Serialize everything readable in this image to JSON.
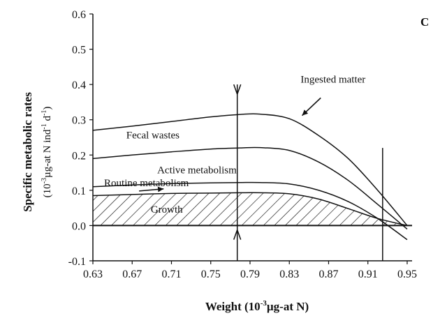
{
  "chart_data": {
    "type": "line",
    "panel_label": "C",
    "xlabel": {
      "main": "Weight (10",
      "sup": "-3",
      "unit": "µg-at N)"
    },
    "ylabel": {
      "line1": "Specific metabolic rates",
      "line2_a": "(10",
      "line2_sup1": "-3",
      "line2_b": "µg-at N ind",
      "line2_sup2": "-1",
      "line2_c": " d",
      "line2_sup3": "-1",
      "line2_d": ")"
    },
    "xlim": [
      0.63,
      0.955
    ],
    "ylim": [
      -0.1,
      0.6
    ],
    "x_ticks": [
      "0.63",
      "0.67",
      "0.71",
      "0.75",
      "0.79",
      "0.83",
      "0.87",
      "0.91",
      "0.95"
    ],
    "y_ticks": [
      "-0.1",
      "0.0",
      "0.1",
      "0.2",
      "0.3",
      "0.4",
      "0.5",
      "0.6"
    ],
    "grid": false,
    "series": [
      {
        "name": "Ingested matter",
        "x": [
          0.63,
          0.67,
          0.71,
          0.75,
          0.78,
          0.8,
          0.83,
          0.86,
          0.89,
          0.92,
          0.95
        ],
        "y": [
          0.27,
          0.282,
          0.295,
          0.308,
          0.315,
          0.316,
          0.303,
          0.255,
          0.19,
          0.1,
          0.0
        ]
      },
      {
        "name": "Fecal wastes",
        "x": [
          0.63,
          0.67,
          0.71,
          0.75,
          0.78,
          0.8,
          0.83,
          0.86,
          0.89,
          0.92,
          0.95
        ],
        "y": [
          0.19,
          0.2,
          0.209,
          0.217,
          0.22,
          0.221,
          0.213,
          0.18,
          0.128,
          0.06,
          -0.01
        ]
      },
      {
        "name": "Active metabolism",
        "x": [
          0.63,
          0.67,
          0.71,
          0.75,
          0.78,
          0.8,
          0.83,
          0.86,
          0.89,
          0.92,
          0.95
        ],
        "y": [
          0.11,
          0.115,
          0.119,
          0.121,
          0.122,
          0.122,
          0.118,
          0.1,
          0.068,
          0.02,
          -0.04
        ]
      },
      {
        "name": "Routine metabolism",
        "x": [
          0.63,
          0.67,
          0.71,
          0.75,
          0.78,
          0.8,
          0.83,
          0.86,
          0.89,
          0.92,
          0.95
        ],
        "y": [
          0.085,
          0.088,
          0.091,
          0.092,
          0.093,
          0.093,
          0.09,
          0.075,
          0.048,
          0.02,
          0.0
        ]
      }
    ],
    "hatched_region": {
      "name": "Growth",
      "series": "Routine metabolism",
      "baseline": 0.0
    },
    "vertical_lines": [
      {
        "x": 0.777,
        "ymin": -0.1,
        "ymax": 0.4
      },
      {
        "x": 0.925,
        "ymin": -0.1,
        "ymax": 0.22
      }
    ],
    "arrows": [
      {
        "x": 0.777,
        "y": 0.4,
        "direction": "down"
      },
      {
        "x": 0.777,
        "y": -0.04,
        "direction": "up"
      }
    ],
    "annotations": [
      {
        "text": "Ingested matter",
        "x": 0.8415,
        "y": 0.405
      },
      {
        "text": "Fecal wastes",
        "x": 0.664,
        "y": 0.247
      },
      {
        "text": "Active metabolism",
        "x": 0.6955,
        "y": 0.148
      },
      {
        "text": "Routine metabolism",
        "x": 0.6414,
        "y": 0.112
      },
      {
        "text": "Growth",
        "x": 0.6889,
        "y": 0.036
      }
    ],
    "colors": {
      "line": "#111111",
      "background": "#ffffff"
    }
  }
}
